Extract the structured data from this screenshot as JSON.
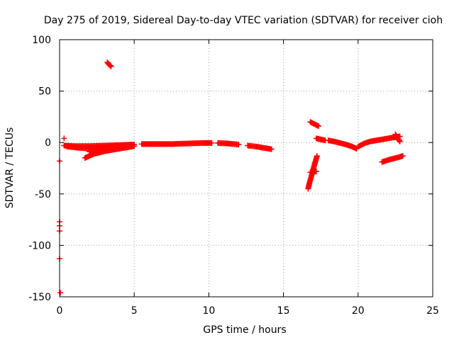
{
  "chart_data": {
    "type": "scatter",
    "title": "Day 275 of 2019, Sidereal Day-to-day VTEC variation (SDTVAR) for receiver cioh",
    "xlabel": "GPS time / hours",
    "ylabel": "SDTVAR / TECUs",
    "xlim": [
      0,
      25
    ],
    "ylim": [
      -150,
      100
    ],
    "xticks": [
      0,
      5,
      10,
      15,
      20,
      25
    ],
    "yticks": [
      -150,
      -100,
      -50,
      0,
      50,
      100
    ],
    "grid": true,
    "marker": "+",
    "series": [
      {
        "name": "SDTVAR",
        "color": "#ff0000",
        "segments": [
          {
            "x": [
              0.0,
              0.0,
              0.0,
              0.0,
              0.0
            ],
            "y": [
              -18,
              -77,
              -81,
              -86,
              -113
            ]
          },
          {
            "x": [
              0.05
            ],
            "y": [
              -146
            ]
          },
          {
            "x": [
              0.3
            ],
            "y": [
              4
            ]
          },
          {
            "x": [
              0.3,
              1.0,
              2.0,
              3.0,
              4.0,
              5.0
            ],
            "y": [
              -3,
              -3.5,
              -3.5,
              -3,
              -2.5,
              -2
            ]
          },
          {
            "x": [
              0.5,
              1.2,
              2.0,
              2.8,
              3.5,
              4.2,
              4.8
            ],
            "y": [
              -4,
              -5,
              -6,
              -5,
              -4,
              -3,
              -2
            ]
          },
          {
            "x": [
              1.7,
              2.0,
              2.3,
              2.6,
              3.0,
              3.4,
              3.8,
              4.2,
              4.6,
              5.0
            ],
            "y": [
              -15,
              -13,
              -11,
              -10,
              -8.5,
              -7.5,
              -6.5,
              -5.5,
              -4.5,
              -3.5
            ]
          },
          {
            "x": [
              2.0,
              2.4,
              2.8,
              3.2,
              3.6,
              4.0
            ],
            "y": [
              -9,
              -7.5,
              -6.5,
              -5.5,
              -4.5,
              -3.5
            ]
          },
          {
            "x": [
              3.2,
              3.3,
              3.45
            ],
            "y": [
              78,
              76,
              74
            ]
          },
          {
            "x": [
              5.5,
              6.5,
              7.5,
              8.5,
              9.5,
              10.2
            ],
            "y": [
              -1.5,
              -1.5,
              -1.5,
              -1.0,
              -0.5,
              -0.5
            ]
          },
          {
            "x": [
              10.6,
              11.3,
              12.0
            ],
            "y": [
              -0.5,
              -1.0,
              -2.0
            ]
          },
          {
            "x": [
              12.6,
              13.2,
              13.8,
              14.2
            ],
            "y": [
              -3.0,
              -4.0,
              -5.5,
              -6.5
            ]
          },
          {
            "x": [
              16.65,
              16.75,
              16.85,
              16.95,
              17.05,
              17.15,
              17.25
            ],
            "y": [
              -45,
              -39,
              -34,
              -28,
              -23,
              -18,
              -13
            ]
          },
          {
            "x": [
              16.8,
              17.0,
              17.2
            ],
            "y": [
              -29,
              -28.5,
              -28
            ]
          },
          {
            "x": [
              16.8,
              17.0,
              17.2,
              17.35
            ],
            "y": [
              20,
              18.5,
              17,
              16
            ]
          },
          {
            "x": [
              17.2,
              17.5,
              17.8
            ],
            "y": [
              4,
              3,
              2
            ]
          },
          {
            "x": [
              18.0,
              18.4,
              18.8,
              19.2,
              19.6,
              19.9
            ],
            "y": [
              2,
              1,
              -0.5,
              -2,
              -4,
              -6
            ]
          },
          {
            "x": [
              20.0,
              20.4,
              20.8,
              21.2,
              21.6,
              22.0,
              22.4,
              22.8
            ],
            "y": [
              -4,
              -1,
              1,
              2,
              3,
              4,
              5,
              6
            ]
          },
          {
            "x": [
              21.6,
              22.0,
              22.4,
              22.8,
              23.0
            ],
            "y": [
              -19,
              -17,
              -15.5,
              -14,
              -13
            ]
          },
          {
            "x": [
              22.5,
              22.6,
              22.7,
              22.8
            ],
            "y": [
              8,
              5,
              3,
              1
            ]
          }
        ]
      }
    ]
  }
}
